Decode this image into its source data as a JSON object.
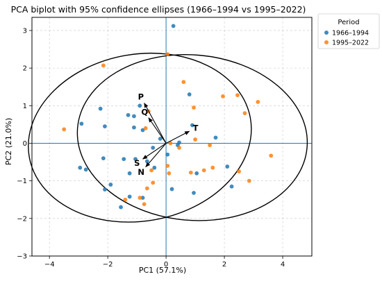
{
  "chart_data": {
    "type": "scatter",
    "title": "PCA biplot with 95% confidence ellipses (1966–1994 vs 1995–2022)",
    "xlabel": "PC1 (57.1%)",
    "ylabel": "PC2 (21.0%)",
    "xlim": [
      -4.6,
      5.0
    ],
    "ylim": [
      -3.0,
      3.35
    ],
    "x_ticks": [
      -4,
      -2,
      0,
      2,
      4
    ],
    "y_ticks": [
      -3,
      -2,
      -1,
      0,
      1,
      2,
      3
    ],
    "grid": true,
    "reference_lines": {
      "x": 0,
      "y": 0,
      "color": "#1f77b4"
    },
    "legend": {
      "title": "Period",
      "placement": "outside-top-right",
      "entries": [
        "1966–1994",
        "1995–2022"
      ]
    },
    "series": [
      {
        "name": "1966–1994",
        "color": "#1f77b4",
        "points": [
          [
            0.25,
            3.12
          ],
          [
            -0.9,
            1.0
          ],
          [
            -1.3,
            0.75
          ],
          [
            -1.1,
            0.72
          ],
          [
            -2.25,
            0.92
          ],
          [
            -2.9,
            0.52
          ],
          [
            -2.1,
            0.45
          ],
          [
            -1.1,
            0.42
          ],
          [
            -0.8,
            0.35
          ],
          [
            -0.2,
            0.12
          ],
          [
            0.45,
            0.02
          ],
          [
            0.9,
            0.48
          ],
          [
            1.7,
            0.15
          ],
          [
            0.4,
            -0.05
          ],
          [
            -0.45,
            -0.12
          ],
          [
            -0.4,
            -0.65
          ],
          [
            -0.65,
            -0.48
          ],
          [
            -1.45,
            -0.42
          ],
          [
            -2.15,
            -0.4
          ],
          [
            -1.05,
            -0.42
          ],
          [
            -2.95,
            -0.65
          ],
          [
            -2.75,
            -0.7
          ],
          [
            -1.25,
            -0.8
          ],
          [
            -1.9,
            -1.1
          ],
          [
            -2.1,
            -1.23
          ],
          [
            -1.25,
            -1.42
          ],
          [
            -0.8,
            -1.45
          ],
          [
            -1.55,
            -1.7
          ],
          [
            0.2,
            -1.22
          ],
          [
            1.05,
            -0.8
          ],
          [
            2.1,
            -0.62
          ],
          [
            2.25,
            -1.15
          ],
          [
            0.95,
            -1.32
          ],
          [
            0.05,
            -0.3
          ],
          [
            0.8,
            1.3
          ]
        ]
      },
      {
        "name": "1995–2022",
        "color": "#ff7f0e",
        "points": [
          [
            0.05,
            2.37
          ],
          [
            -2.15,
            2.07
          ],
          [
            0.6,
            1.63
          ],
          [
            1.95,
            1.25
          ],
          [
            2.45,
            1.28
          ],
          [
            3.15,
            1.1
          ],
          [
            0.95,
            0.95
          ],
          [
            2.7,
            0.8
          ],
          [
            -0.6,
            0.85
          ],
          [
            -0.7,
            0.4
          ],
          [
            -3.5,
            0.37
          ],
          [
            1.0,
            0.1
          ],
          [
            1.5,
            -0.05
          ],
          [
            0.15,
            0.0
          ],
          [
            0.45,
            -0.12
          ],
          [
            3.6,
            -0.33
          ],
          [
            0.05,
            -0.6
          ],
          [
            0.85,
            -0.78
          ],
          [
            2.5,
            -0.75
          ],
          [
            -0.5,
            -0.72
          ],
          [
            0.1,
            -0.8
          ],
          [
            1.3,
            -0.72
          ],
          [
            1.6,
            -0.65
          ],
          [
            2.85,
            -1.0
          ],
          [
            -0.45,
            -1.05
          ],
          [
            -0.65,
            -1.2
          ],
          [
            -0.9,
            -1.45
          ],
          [
            -1.4,
            -1.5
          ],
          [
            -0.75,
            -1.62
          ]
        ]
      }
    ],
    "ellipses": [
      {
        "series": "1966–1994",
        "center": [
          -0.9,
          0.15
        ],
        "semi_axes": [
          3.85,
          2.22
        ],
        "rotation_deg": 10
      },
      {
        "series": "1995–2022",
        "center": [
          0.9,
          0.15
        ],
        "semi_axes": [
          3.95,
          2.2
        ],
        "rotation_deg": -5
      }
    ],
    "loading_vectors": [
      {
        "label": "P",
        "x": -0.75,
        "y": 1.07
      },
      {
        "label": "Q",
        "x": -0.6,
        "y": 0.68
      },
      {
        "label": "T",
        "x": 0.8,
        "y": 0.32
      },
      {
        "label": "S",
        "x": -0.8,
        "y": -0.42
      },
      {
        "label": "N",
        "x": -0.7,
        "y": -0.63
      }
    ]
  }
}
